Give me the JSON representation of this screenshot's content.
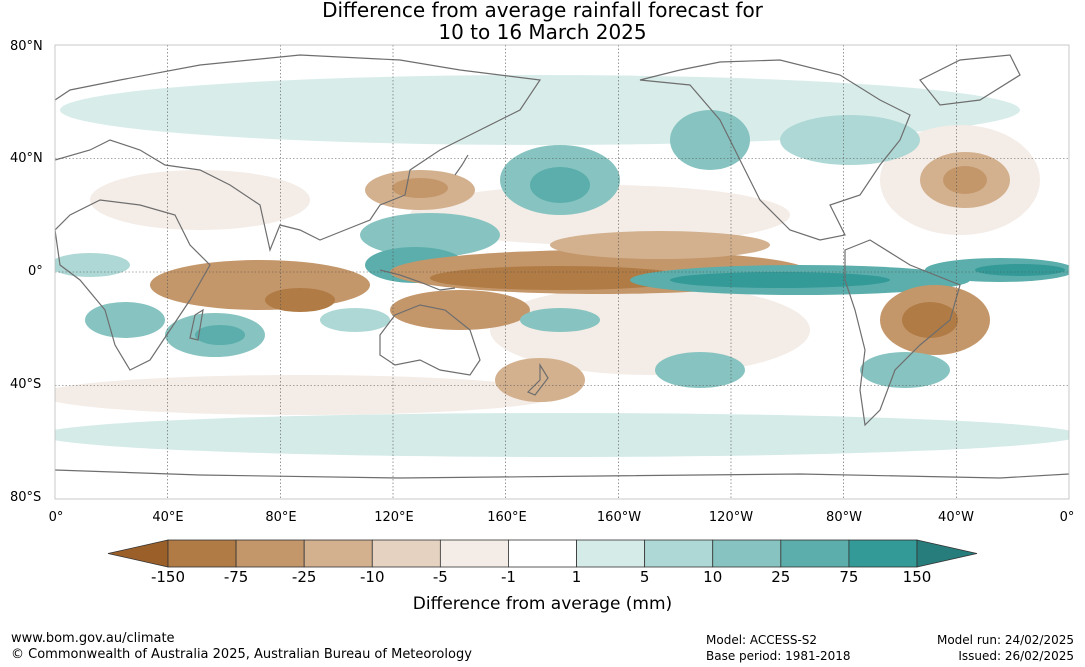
{
  "title": {
    "line1": "Difference from average rainfall forecast for",
    "line2": "10 to 16 March 2025"
  },
  "map": {
    "latitude_labels": [
      "80°N",
      "40°N",
      "0°",
      "40°S",
      "80°S"
    ],
    "longitude_labels": [
      "0°",
      "40°E",
      "80°E",
      "120°E",
      "160°E",
      "160°W",
      "120°W",
      "80°W",
      "40°W",
      "0°"
    ],
    "regions": [
      {
        "name": "equatorial-east-pacific-wet",
        "category": "75"
      },
      {
        "name": "equatorial-central-pacific-dry",
        "category": "-75"
      },
      {
        "name": "maritime-continent-wet",
        "category": "25"
      },
      {
        "name": "north-australia-dry",
        "category": "-25"
      },
      {
        "name": "brazil-dry",
        "category": "-75"
      },
      {
        "name": "southern-africa-wet",
        "category": "25"
      },
      {
        "name": "north-atlantic-dry",
        "category": "-25"
      },
      {
        "name": "north-pacific-wet",
        "category": "25"
      }
    ]
  },
  "colorbar": {
    "labels": [
      "-150",
      "-75",
      "-25",
      "-10",
      "-5",
      "-1",
      "1",
      "5",
      "10",
      "25",
      "75",
      "150"
    ],
    "colors": [
      "#9b5f2a",
      "#b07b44",
      "#c4976b",
      "#d3b18f",
      "#e6d2c0",
      "#f4ece6",
      "#ffffff",
      "#d4ebe8",
      "#aed8d5",
      "#87c4c1",
      "#5baeab",
      "#339a97",
      "#277d7c"
    ],
    "title": "Difference from average (mm)"
  },
  "footer": {
    "url": "www.bom.gov.au/climate",
    "copyright": "© Commonwealth of Australia 2025, Australian Bureau of Meteorology",
    "model": "Model: ACCESS-S2",
    "base_period": "Base period: 1981-2018",
    "model_run": "Model run: 24/02/2025",
    "issued": "Issued: 26/02/2025"
  }
}
